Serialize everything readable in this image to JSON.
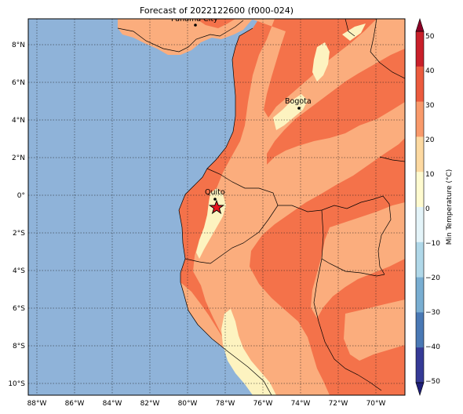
{
  "title": "Forecast of 2022122600 (f000-024)",
  "colorbar": {
    "label": "Min Temperature (°C)",
    "ticks": [
      "50",
      "40",
      "30",
      "20",
      "10",
      "0",
      "−10",
      "−20",
      "−30",
      "−40",
      "−50"
    ],
    "bands": [
      "#8b0026",
      "#c9202a",
      "#ec5b3e",
      "#f99a6b",
      "#fdd9a1",
      "#fffbd0",
      "#e4f4f9",
      "#b0d8e9",
      "#79aed2",
      "#4a79b5",
      "#353a96",
      "#1f1f7a"
    ]
  },
  "lat_ticks": [
    "8°N",
    "6°N",
    "4°N",
    "2°N",
    "0°",
    "2°S",
    "4°S",
    "6°S",
    "8°S",
    "10°S"
  ],
  "lon_ticks": [
    "88°W",
    "86°W",
    "84°W",
    "82°W",
    "80°W",
    "78°W",
    "76°W",
    "74°W",
    "72°W",
    "70°W"
  ],
  "cities": {
    "panama": "Panama City",
    "bogota": "Bogota",
    "quito": "Quito"
  },
  "colors": {
    "ocean": "#8fb3d9",
    "band_10_20": "#fbad7d",
    "band_20_30": "#f4724a",
    "band_0_10": "#fdf3c0",
    "grid": "#1a1a1a"
  }
}
